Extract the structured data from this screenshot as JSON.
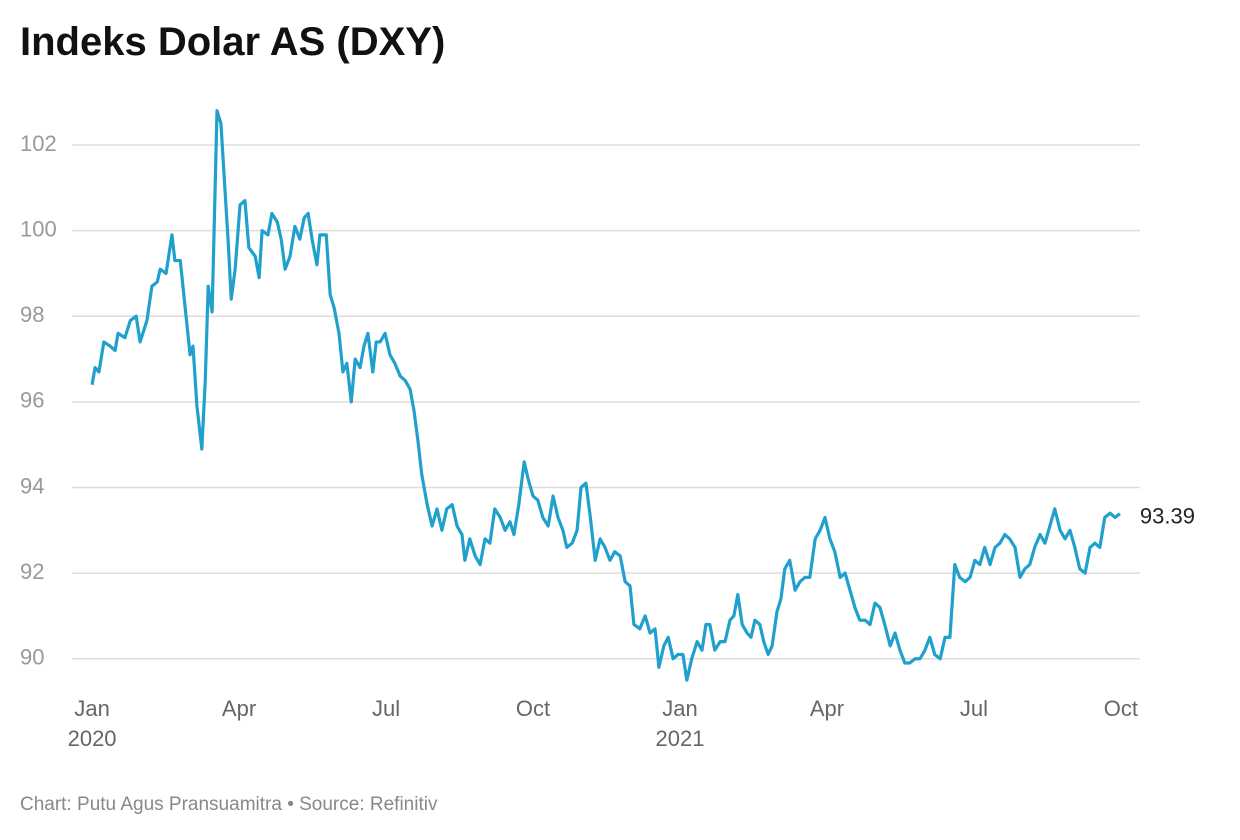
{
  "chart_data": {
    "type": "line",
    "title": "Indeks Dolar AS (DXY)",
    "source": "Chart: Putu Agus Pransuamitra • Source: Refinitiv",
    "color": "#20a0cc",
    "grid": true,
    "x": [
      0,
      0.06,
      0.14,
      0.24,
      0.37,
      0.47,
      0.53,
      0.67,
      0.78,
      0.9,
      0.98,
      1.12,
      1.22,
      1.33,
      1.39,
      1.51,
      1.63,
      1.69,
      1.8,
      1.9,
      2,
      2.06,
      2.14,
      2.24,
      2.31,
      2.37,
      2.45,
      2.55,
      2.63,
      2.71,
      2.78,
      2.84,
      2.92,
      3.02,
      3.12,
      3.2,
      3.33,
      3.41,
      3.47,
      3.59,
      3.67,
      3.78,
      3.86,
      3.94,
      4.04,
      4.14,
      4.24,
      4.33,
      4.41,
      4.49,
      4.59,
      4.65,
      4.78,
      4.86,
      4.94,
      5.04,
      5.12,
      5.2,
      5.29,
      5.37,
      5.47,
      5.55,
      5.63,
      5.73,
      5.8,
      5.88,
      5.98,
      6.08,
      6.18,
      6.29,
      6.39,
      6.49,
      6.57,
      6.65,
      6.73,
      6.84,
      6.94,
      7.04,
      7.14,
      7.24,
      7.35,
      7.45,
      7.55,
      7.61,
      7.71,
      7.82,
      7.92,
      8.02,
      8.12,
      8.22,
      8.33,
      8.43,
      8.53,
      8.61,
      8.71,
      8.82,
      8.9,
      9,
      9.1,
      9.2,
      9.31,
      9.41,
      9.51,
      9.61,
      9.69,
      9.8,
      9.9,
      9.98,
      10.08,
      10.16,
      10.27,
      10.37,
      10.47,
      10.57,
      10.67,
      10.78,
      10.88,
      10.98,
      11.06,
      11.18,
      11.29,
      11.39,
      11.49,
      11.57,
      11.67,
      11.76,
      11.86,
      11.96,
      12.06,
      12.14,
      12.24,
      12.35,
      12.45,
      12.53,
      12.61,
      12.71,
      12.82,
      12.92,
      13.02,
      13.1,
      13.18,
      13.27,
      13.37,
      13.45,
      13.53,
      13.63,
      13.71,
      13.8,
      13.88,
      13.98,
      14.06,
      14.14,
      14.24,
      14.35,
      14.45,
      14.55,
      14.65,
      14.76,
      14.86,
      14.96,
      15.06,
      15.16,
      15.27,
      15.37,
      15.47,
      15.57,
      15.67,
      15.78,
      15.88,
      15.98,
      16.08,
      16.18,
      16.29,
      16.39,
      16.49,
      16.59,
      16.69,
      16.8,
      16.9,
      17,
      17.1,
      17.2,
      17.31,
      17.41,
      17.51,
      17.61,
      17.71,
      17.82,
      17.92,
      18.02,
      18.12,
      18.22,
      18.33,
      18.43,
      18.53,
      18.63,
      18.73,
      18.84,
      18.94,
      19.04,
      19.14,
      19.24,
      19.35,
      19.45,
      19.55,
      19.65,
      19.76,
      19.86,
      19.96,
      20.06,
      20.16,
      20.27,
      20.37,
      20.47,
      20.57,
      20.67,
      20.78,
      20.88,
      20.98
    ],
    "values": [
      96.4,
      96.8,
      96.7,
      97.4,
      97.3,
      97.2,
      97.6,
      97.5,
      97.9,
      98.0,
      97.4,
      97.9,
      98.7,
      98.8,
      99.1,
      99.0,
      99.9,
      99.3,
      99.3,
      98.2,
      97.1,
      97.3,
      95.9,
      94.9,
      96.5,
      98.7,
      98.1,
      102.8,
      102.5,
      101.0,
      99.7,
      98.4,
      99.1,
      100.6,
      100.7,
      99.6,
      99.4,
      98.9,
      100.0,
      99.9,
      100.4,
      100.2,
      99.8,
      99.1,
      99.4,
      100.1,
      99.8,
      100.3,
      100.4,
      99.8,
      99.2,
      99.9,
      99.9,
      98.5,
      98.2,
      97.6,
      96.7,
      96.9,
      96.0,
      97.0,
      96.8,
      97.3,
      97.6,
      96.7,
      97.4,
      97.4,
      97.6,
      97.1,
      96.9,
      96.6,
      96.5,
      96.3,
      95.8,
      95.1,
      94.3,
      93.6,
      93.1,
      93.5,
      93.0,
      93.5,
      93.6,
      93.1,
      92.9,
      92.3,
      92.8,
      92.4,
      92.2,
      92.8,
      92.7,
      93.5,
      93.3,
      93.0,
      93.2,
      92.9,
      93.6,
      94.6,
      94.2,
      93.8,
      93.7,
      93.3,
      93.1,
      93.8,
      93.3,
      93.0,
      92.6,
      92.7,
      93.0,
      94.0,
      94.1,
      93.4,
      92.3,
      92.8,
      92.6,
      92.3,
      92.5,
      92.4,
      91.8,
      91.7,
      90.8,
      90.7,
      91.0,
      90.6,
      90.7,
      89.8,
      90.3,
      90.5,
      90.0,
      90.1,
      90.1,
      89.5,
      90.0,
      90.4,
      90.2,
      90.8,
      90.8,
      90.2,
      90.4,
      90.4,
      90.9,
      91.0,
      91.5,
      90.8,
      90.6,
      90.5,
      90.9,
      90.8,
      90.4,
      90.1,
      90.3,
      91.1,
      91.4,
      92.1,
      92.3,
      91.6,
      91.8,
      91.9,
      91.9,
      92.8,
      93.0,
      93.3,
      92.8,
      92.5,
      91.9,
      92.0,
      91.6,
      91.2,
      90.9,
      90.9,
      90.8,
      91.3,
      91.2,
      90.8,
      90.3,
      90.6,
      90.2,
      89.9,
      89.9,
      90.0,
      90.0,
      90.2,
      90.5,
      90.1,
      90.0,
      90.5,
      90.5,
      92.2,
      91.9,
      91.8,
      91.9,
      92.3,
      92.2,
      92.6,
      92.2,
      92.6,
      92.7,
      92.9,
      92.8,
      92.6,
      91.9,
      92.1,
      92.2,
      92.6,
      92.9,
      92.7,
      93.1,
      93.5,
      93.0,
      92.8,
      93.0,
      92.6,
      92.1,
      92.0,
      92.6,
      92.7,
      92.6,
      93.3,
      93.4,
      93.3,
      93.39
    ],
    "xlim": [
      -0.41,
      21.39
    ],
    "xticks": [
      {
        "value": 0,
        "label": "Jan 2020"
      },
      {
        "value": 3,
        "label": "Apr"
      },
      {
        "value": 6,
        "label": "Jul"
      },
      {
        "value": 9,
        "label": "Oct"
      },
      {
        "value": 12,
        "label": "Jan 2021"
      },
      {
        "value": 15,
        "label": "Apr"
      },
      {
        "value": 18,
        "label": "Jul"
      },
      {
        "value": 21,
        "label": "Oct"
      }
    ],
    "ylim": [
      89.2,
      103.2
    ],
    "yticks": [
      90,
      92,
      94,
      96,
      98,
      100,
      102
    ]
  }
}
